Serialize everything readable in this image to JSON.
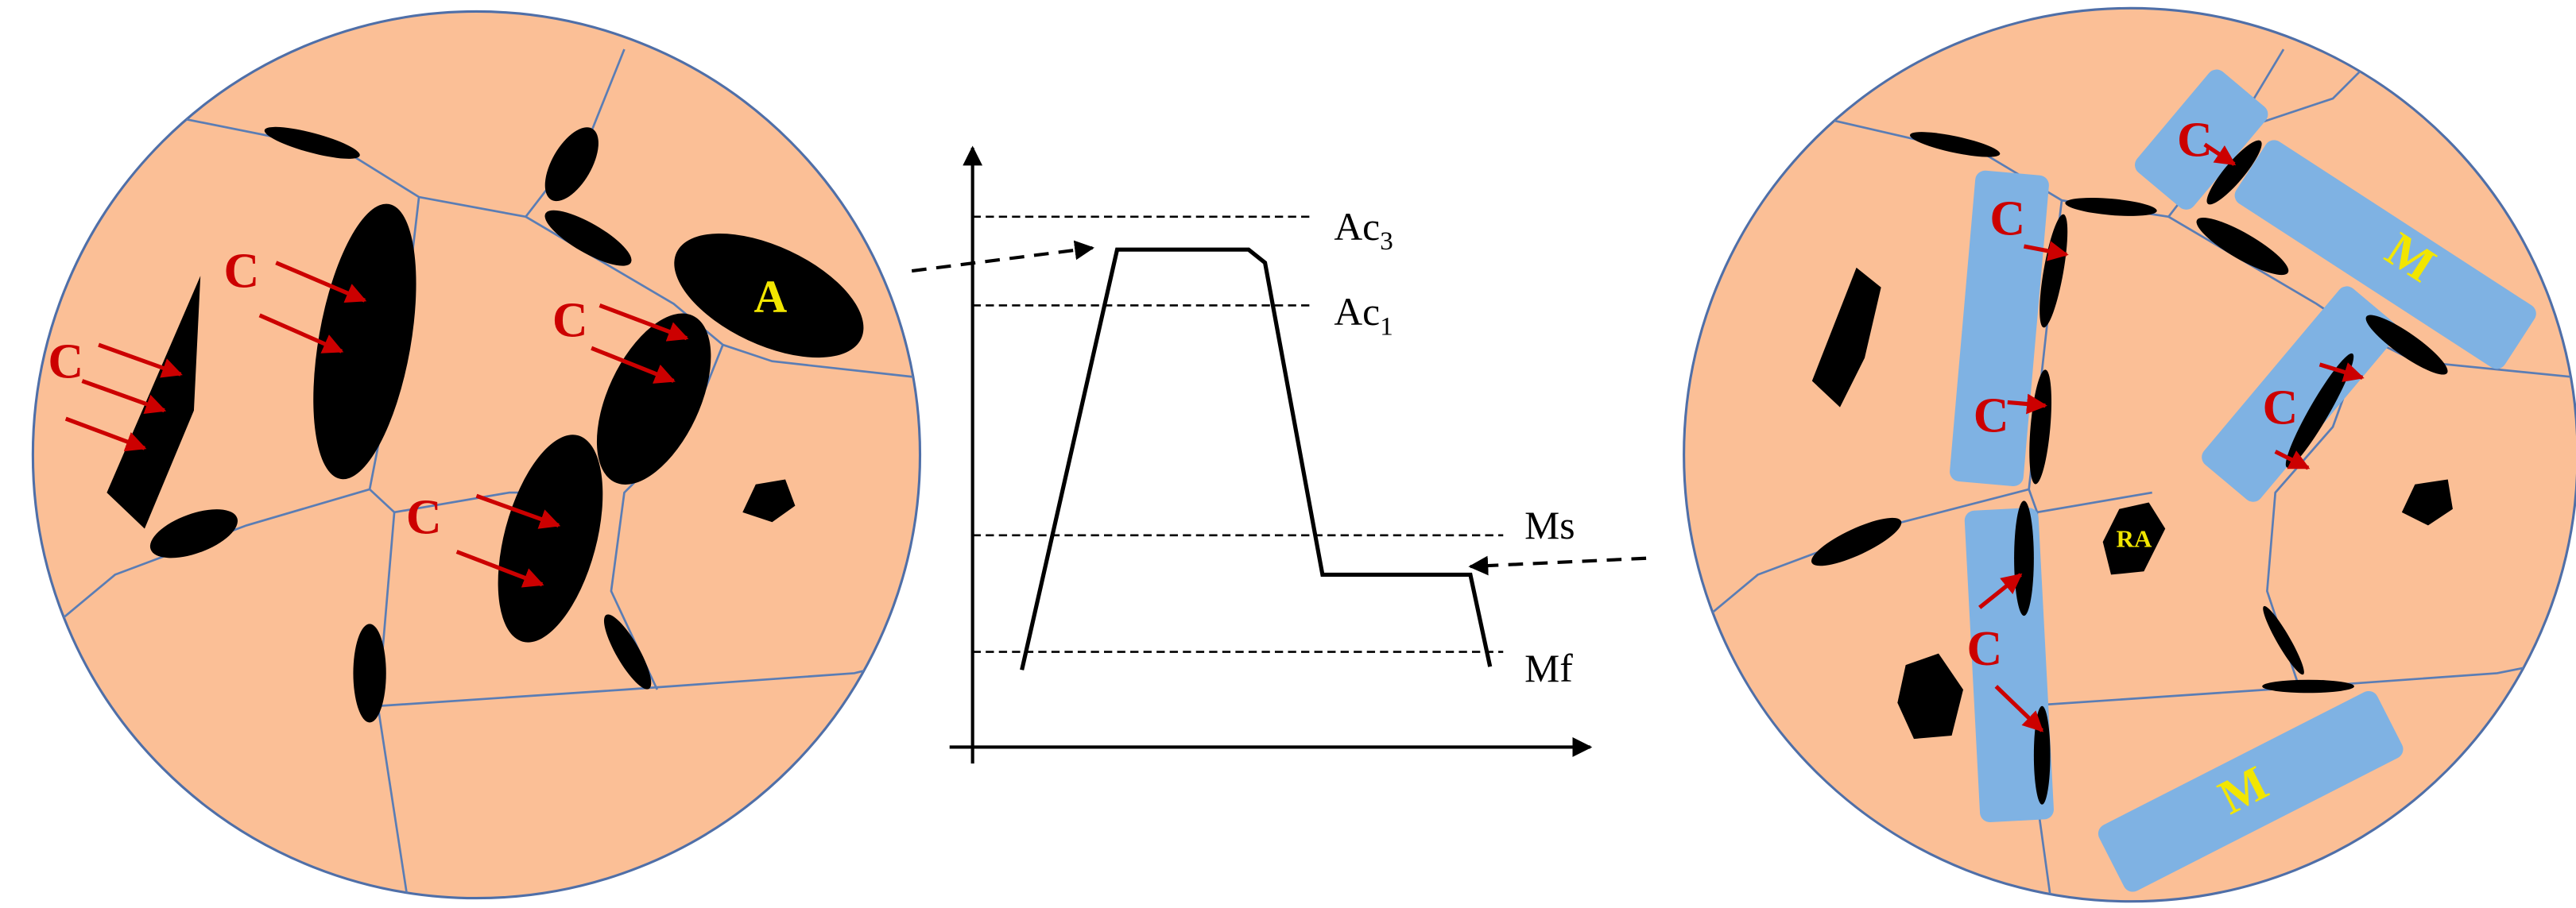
{
  "left_micrograph": {
    "carbon_labels": [
      "C",
      "C",
      "C",
      "C"
    ],
    "austenite_label": "A"
  },
  "heat_treatment": {
    "lines": [
      {
        "name": "Ac",
        "sub": "3"
      },
      {
        "name": "Ac",
        "sub": "1"
      },
      {
        "name": "Ms"
      },
      {
        "name": "Mf"
      }
    ]
  },
  "right_micrograph": {
    "carbon_labels": [
      "C",
      "C",
      "C",
      "C",
      "C"
    ],
    "martensite_labels": [
      "M",
      "M"
    ],
    "retained_austenite_label": "RA"
  }
}
